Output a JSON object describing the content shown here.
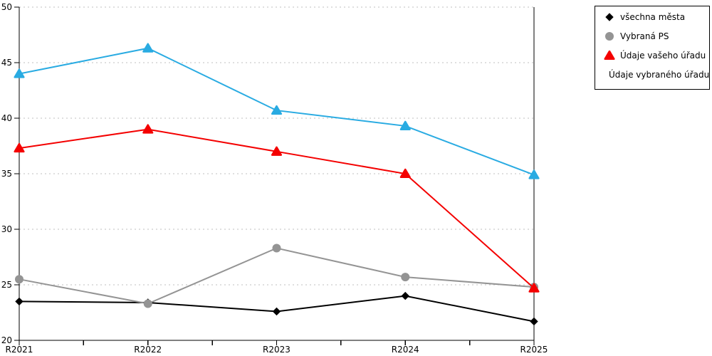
{
  "chart_data": {
    "type": "line",
    "title": "",
    "xlabel": "",
    "ylabel": "",
    "categories": [
      "R2021",
      "R2022",
      "R2023",
      "R2024",
      "R2025"
    ],
    "series": [
      {
        "name": "všechna města",
        "marker": "diamond",
        "color": "#000000",
        "values": [
          23.5,
          23.4,
          22.6,
          24.0,
          21.7
        ]
      },
      {
        "name": "Vybraná PS",
        "marker": "circle",
        "color": "#949494",
        "values": [
          25.5,
          23.3,
          28.3,
          25.7,
          24.8
        ]
      },
      {
        "name": "Údaje vašeho úřadu",
        "marker": "triangle",
        "color": "#f40000",
        "values": [
          37.3,
          39.0,
          37.0,
          35.0,
          24.7
        ]
      },
      {
        "name": "Údaje vybraného úřadu",
        "marker": "triangle",
        "color": "#29abe2",
        "values": [
          44.0,
          46.3,
          40.7,
          39.3,
          34.9
        ]
      }
    ],
    "ylim": [
      20,
      50
    ],
    "y_ticks": [
      20,
      25,
      30,
      35,
      40,
      45,
      50
    ],
    "x_minor_ticks": "midpoints between years",
    "grid": "horizontal dotted",
    "grid_color": "#bfbfbf",
    "axis_color": "#000000",
    "legend_position": "top-right"
  }
}
